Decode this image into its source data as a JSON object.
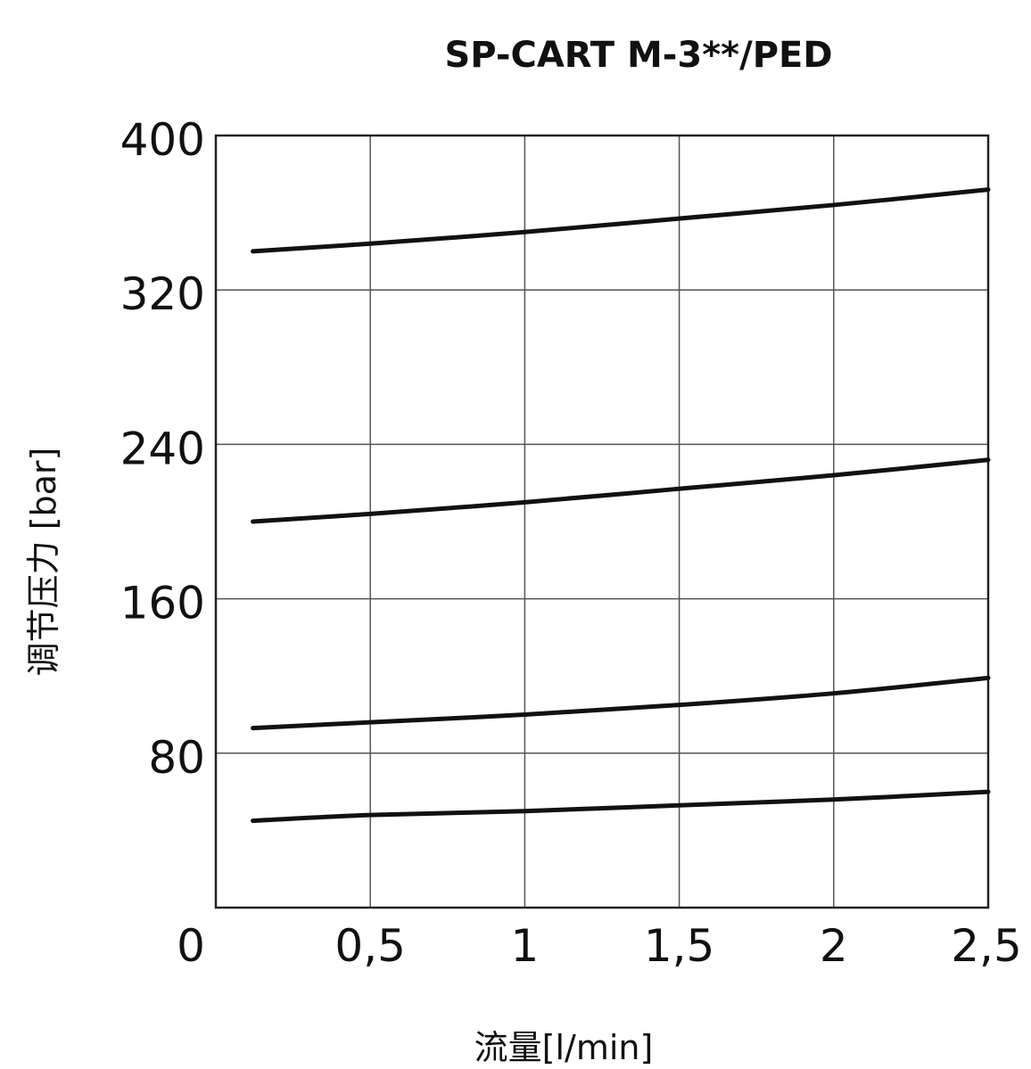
{
  "chart_data": {
    "type": "line",
    "title": "SP-CART M-3**/PED",
    "xlabel": "流量[l/min]",
    "ylabel": "调节压力 [bar]",
    "xlim": [
      0,
      2.5
    ],
    "ylim": [
      0,
      400
    ],
    "x_ticks": [
      0,
      0.5,
      1,
      1.5,
      2,
      2.5
    ],
    "x_tick_labels": [
      "0",
      "0,5",
      "1",
      "1,5",
      "2",
      "2,5"
    ],
    "y_ticks": [
      80,
      160,
      240,
      320,
      400
    ],
    "y_tick_labels": [
      "80",
      "160",
      "240",
      "320",
      "400"
    ],
    "grid": true,
    "colors": {
      "line": "#111111",
      "grid": "#555555",
      "frame": "#222222"
    },
    "series": [
      {
        "x": [
          0.12,
          0.5,
          1.0,
          1.5,
          2.0,
          2.5
        ],
        "values": [
          340,
          344,
          350,
          357,
          364,
          372
        ]
      },
      {
        "x": [
          0.12,
          0.5,
          1.0,
          1.5,
          2.0,
          2.5
        ],
        "values": [
          200,
          204,
          210,
          217,
          224,
          232
        ]
      },
      {
        "x": [
          0.12,
          0.5,
          1.0,
          1.5,
          2.0,
          2.5
        ],
        "values": [
          93,
          96,
          100,
          105,
          111,
          119
        ]
      },
      {
        "x": [
          0.12,
          0.5,
          1.0,
          1.5,
          2.0,
          2.5
        ],
        "values": [
          45,
          48,
          50,
          53,
          56,
          60
        ]
      }
    ]
  }
}
